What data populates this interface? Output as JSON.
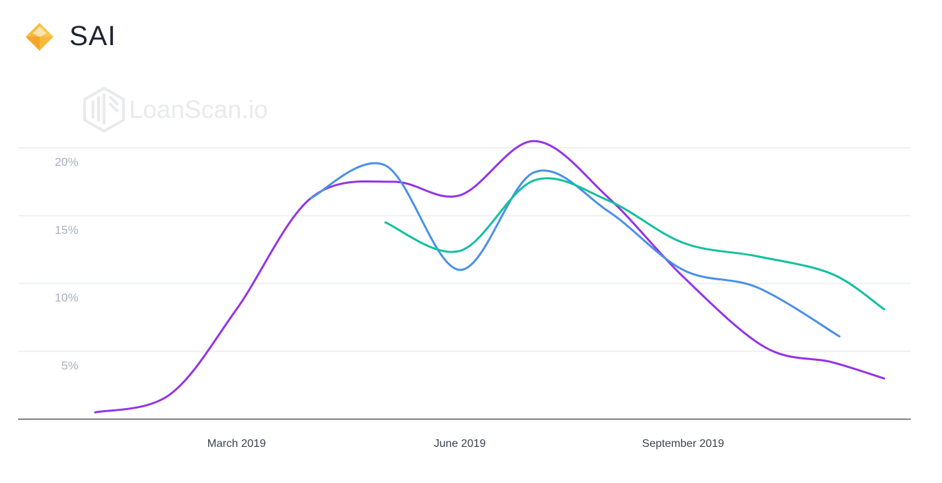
{
  "header": {
    "title": "SAI",
    "icon": "sai-diamond-icon"
  },
  "watermark": {
    "text": "LoanScan.io"
  },
  "chart_data": {
    "type": "line",
    "title": "SAI",
    "xlabel": "",
    "ylabel": "",
    "x_unit": "months since Jan 2019",
    "xticks": [
      {
        "x": 2,
        "label": "March 2019"
      },
      {
        "x": 5,
        "label": "June 2019"
      },
      {
        "x": 8,
        "label": "September 2019"
      }
    ],
    "yticks": [
      {
        "y": 5,
        "label": "5%"
      },
      {
        "y": 10,
        "label": "10%"
      },
      {
        "y": 15,
        "label": "15%"
      },
      {
        "y": 20,
        "label": "20%"
      }
    ],
    "ylim": [
      0,
      20
    ],
    "grid": true,
    "series": [
      {
        "name": "purple",
        "color": "#9334e6",
        "x": [
          0.1,
          1.1,
          2.0,
          3.0,
          4.1,
          5.0,
          6.0,
          7.0,
          8.0,
          9.1,
          10.0,
          10.7
        ],
        "y": [
          0.5,
          1.8,
          8.1,
          16.3,
          17.5,
          16.5,
          20.5,
          16.3,
          10.5,
          5.3,
          4.2,
          3.0
        ]
      },
      {
        "name": "blue",
        "color": "#4a90e8",
        "x": [
          3.0,
          4.0,
          5.0,
          6.0,
          7.0,
          8.0,
          9.0,
          10.1
        ],
        "y": [
          16.3,
          18.7,
          11.0,
          18.2,
          15.3,
          11.0,
          9.7,
          6.1
        ]
      },
      {
        "name": "green",
        "color": "#13c0a0",
        "x": [
          4.0,
          5.0,
          6.0,
          7.0,
          8.0,
          9.0,
          10.0,
          10.7
        ],
        "y": [
          14.5,
          12.4,
          17.6,
          16.1,
          13.0,
          12.0,
          10.7,
          8.1
        ]
      }
    ]
  }
}
